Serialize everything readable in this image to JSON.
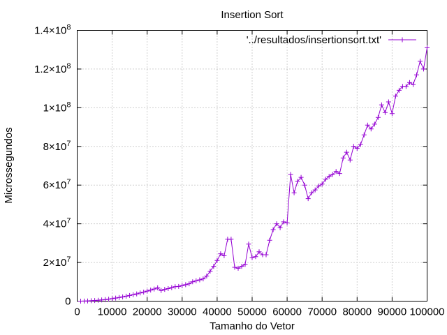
{
  "chart_data": {
    "type": "line",
    "title": "Insertion Sort",
    "xlabel": "Tamanho do Vetor",
    "ylabel": "Microssegundos",
    "xlim": [
      0,
      100000
    ],
    "ylim": [
      0,
      140000000
    ],
    "grid": true,
    "legend_position": "top-right",
    "x_ticks": [
      0,
      10000,
      20000,
      30000,
      40000,
      50000,
      60000,
      70000,
      80000,
      90000,
      100000
    ],
    "x_tick_labels": [
      "0",
      "10000",
      "20000",
      "30000",
      "40000",
      "50000",
      "60000",
      "70000",
      "80000",
      "90000",
      "100000"
    ],
    "y_ticks": [
      0,
      20000000,
      40000000,
      60000000,
      80000000,
      100000000,
      120000000,
      140000000
    ],
    "y_tick_labels": [
      {
        "base": "0",
        "exp": ""
      },
      {
        "base": "2×10",
        "exp": "7"
      },
      {
        "base": "4×10",
        "exp": "7"
      },
      {
        "base": "6×10",
        "exp": "7"
      },
      {
        "base": "8×10",
        "exp": "7"
      },
      {
        "base": "1×10",
        "exp": "8"
      },
      {
        "base": "1.2×10",
        "exp": "8"
      },
      {
        "base": "1.4×10",
        "exp": "8"
      }
    ],
    "series": [
      {
        "name": "'../resultados/insertionsort.txt'",
        "color": "#9400d3",
        "marker": "plus",
        "x": [
          1000,
          2000,
          3000,
          4000,
          5000,
          6000,
          7000,
          8000,
          9000,
          10000,
          11000,
          12000,
          13000,
          14000,
          15000,
          16000,
          17000,
          18000,
          19000,
          20000,
          21000,
          22000,
          23000,
          24000,
          25000,
          26000,
          27000,
          28000,
          29000,
          30000,
          31000,
          32000,
          33000,
          34000,
          35000,
          36000,
          37000,
          38000,
          39000,
          40000,
          41000,
          42000,
          43000,
          44000,
          45000,
          46000,
          47000,
          48000,
          49000,
          50000,
          51000,
          52000,
          53000,
          54000,
          55000,
          56000,
          57000,
          58000,
          59000,
          60000,
          61000,
          62000,
          63000,
          64000,
          65000,
          66000,
          67000,
          68000,
          69000,
          70000,
          71000,
          72000,
          73000,
          74000,
          75000,
          76000,
          77000,
          78000,
          79000,
          80000,
          81000,
          82000,
          83000,
          84000,
          85000,
          86000,
          87000,
          88000,
          89000,
          90000,
          91000,
          92000,
          93000,
          94000,
          95000,
          96000,
          97000,
          98000,
          99000,
          100000
        ],
        "y": [
          13000,
          52000,
          117000,
          208000,
          325000,
          468000,
          640000,
          830000,
          1050000,
          1300000,
          1570000,
          1870000,
          2200000,
          2550000,
          2920000,
          3330000,
          3760000,
          4210000,
          4690000,
          5200000,
          5730000,
          6290000,
          6880000,
          5500000,
          6100000,
          6500000,
          7000000,
          7500000,
          7600000,
          8000000,
          8500000,
          9000000,
          10000000,
          10500000,
          11000000,
          11500000,
          13000000,
          15500000,
          18000000,
          21000000,
          24500000,
          23500000,
          32000000,
          32000000,
          17500000,
          17000000,
          18000000,
          19000000,
          29500000,
          22500000,
          23000000,
          25500000,
          24000000,
          24000000,
          31500000,
          37000000,
          40000000,
          38000000,
          41000000,
          40500000,
          65500000,
          56000000,
          62000000,
          64000000,
          60000000,
          53000000,
          56000000,
          57500000,
          59500000,
          60500000,
          63000000,
          64500000,
          65500000,
          67000000,
          66000000,
          74000000,
          77000000,
          73000000,
          80000000,
          79000000,
          81000000,
          86000000,
          91000000,
          89000000,
          91500000,
          95000000,
          101500000,
          97500000,
          103000000,
          97000000,
          106000000,
          109000000,
          111000000,
          111000000,
          113000000,
          112000000,
          117000000,
          124000000,
          120000000,
          131000000
        ]
      }
    ]
  }
}
